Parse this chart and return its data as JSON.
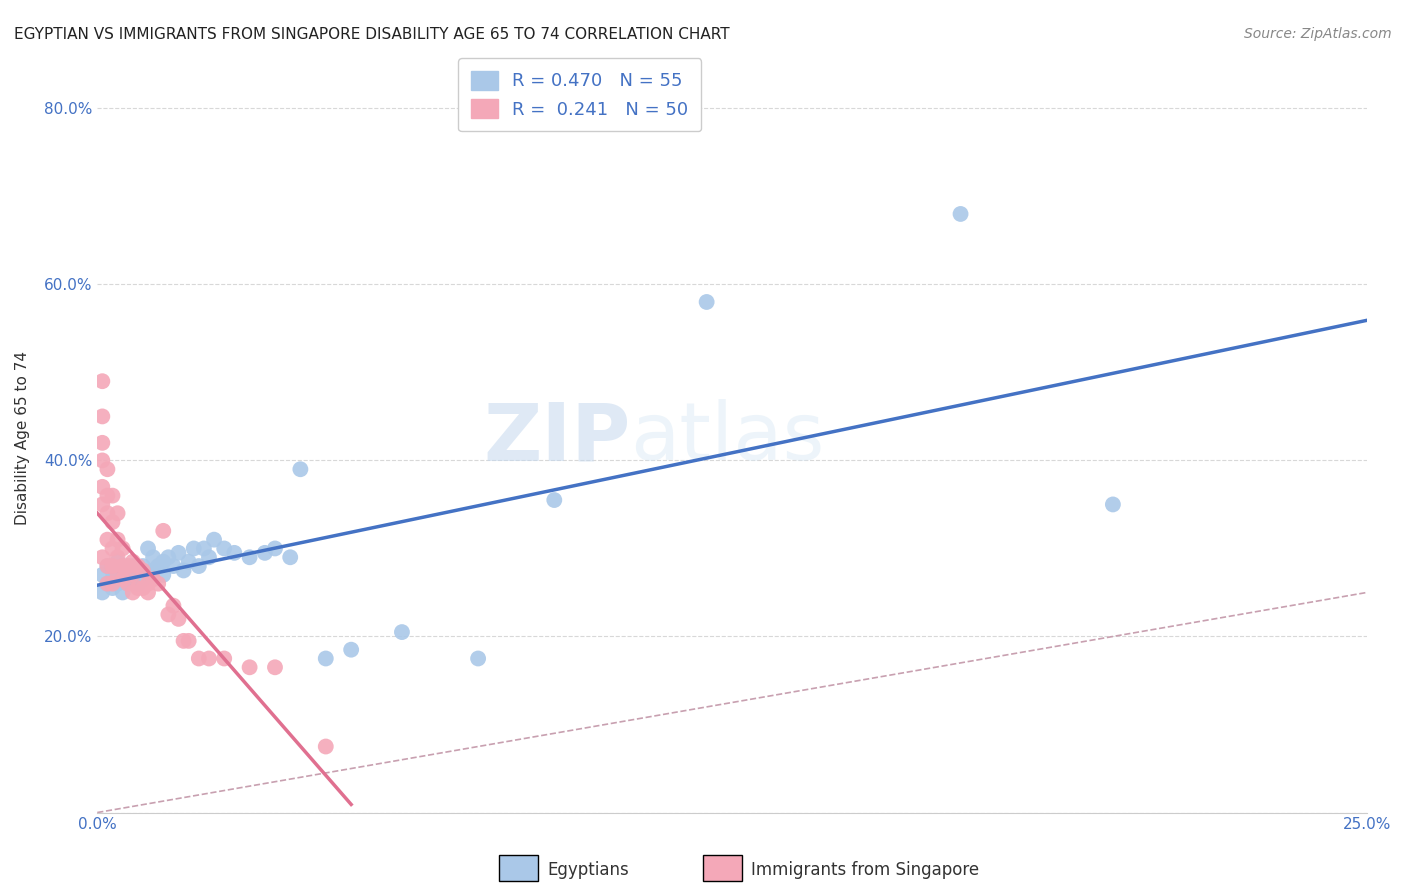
{
  "title": "EGYPTIAN VS IMMIGRANTS FROM SINGAPORE DISABILITY AGE 65 TO 74 CORRELATION CHART",
  "source": "Source: ZipAtlas.com",
  "ylabel": "Disability Age 65 to 74",
  "xlim": [
    0.0,
    0.25
  ],
  "ylim": [
    0.0,
    0.85
  ],
  "xticks": [
    0.0,
    0.05,
    0.1,
    0.15,
    0.2,
    0.25
  ],
  "xticklabels": [
    "0.0%",
    "",
    "",
    "",
    "",
    "25.0%"
  ],
  "yticks": [
    0.0,
    0.2,
    0.4,
    0.6,
    0.8
  ],
  "yticklabels": [
    "",
    "20.0%",
    "40.0%",
    "60.0%",
    "80.0%"
  ],
  "watermark_left": "ZIP",
  "watermark_right": "atlas",
  "legend_label_eg": "R = 0.470   N = 55",
  "legend_label_sg": "R =  0.241   N = 50",
  "egyptians_color": "#aac8e8",
  "singapore_color": "#f4a8b8",
  "egyptians_line_color": "#4472c4",
  "singapore_line_color": "#e07090",
  "diagonal_color": "#c8a0b0",
  "title_fontsize": 11,
  "axis_label_fontsize": 11,
  "tick_fontsize": 11,
  "legend_fontsize": 13,
  "source_fontsize": 10,
  "background_color": "#ffffff",
  "grid_color": "#d8d8d8",
  "egyptians_x": [
    0.001,
    0.001,
    0.002,
    0.002,
    0.003,
    0.003,
    0.003,
    0.004,
    0.004,
    0.004,
    0.005,
    0.005,
    0.005,
    0.006,
    0.006,
    0.006,
    0.007,
    0.007,
    0.007,
    0.008,
    0.008,
    0.009,
    0.009,
    0.01,
    0.01,
    0.011,
    0.011,
    0.012,
    0.013,
    0.013,
    0.014,
    0.015,
    0.016,
    0.017,
    0.018,
    0.019,
    0.02,
    0.021,
    0.022,
    0.023,
    0.025,
    0.027,
    0.03,
    0.033,
    0.035,
    0.038,
    0.04,
    0.045,
    0.05,
    0.06,
    0.075,
    0.09,
    0.12,
    0.17,
    0.2
  ],
  "egyptians_y": [
    0.27,
    0.25,
    0.28,
    0.26,
    0.265,
    0.275,
    0.255,
    0.27,
    0.26,
    0.285,
    0.275,
    0.265,
    0.25,
    0.28,
    0.27,
    0.26,
    0.275,
    0.265,
    0.28,
    0.275,
    0.26,
    0.28,
    0.265,
    0.3,
    0.27,
    0.29,
    0.275,
    0.28,
    0.285,
    0.27,
    0.29,
    0.28,
    0.295,
    0.275,
    0.285,
    0.3,
    0.28,
    0.3,
    0.29,
    0.31,
    0.3,
    0.295,
    0.29,
    0.295,
    0.3,
    0.29,
    0.39,
    0.175,
    0.185,
    0.205,
    0.175,
    0.355,
    0.58,
    0.68,
    0.35
  ],
  "singapore_x": [
    0.001,
    0.001,
    0.001,
    0.001,
    0.001,
    0.001,
    0.001,
    0.002,
    0.002,
    0.002,
    0.002,
    0.002,
    0.002,
    0.003,
    0.003,
    0.003,
    0.003,
    0.003,
    0.004,
    0.004,
    0.004,
    0.004,
    0.005,
    0.005,
    0.005,
    0.006,
    0.006,
    0.007,
    0.007,
    0.007,
    0.008,
    0.008,
    0.009,
    0.009,
    0.01,
    0.01,
    0.011,
    0.012,
    0.013,
    0.014,
    0.015,
    0.016,
    0.017,
    0.018,
    0.02,
    0.022,
    0.025,
    0.03,
    0.035,
    0.045
  ],
  "singapore_y": [
    0.49,
    0.45,
    0.42,
    0.4,
    0.37,
    0.35,
    0.29,
    0.39,
    0.36,
    0.34,
    0.31,
    0.28,
    0.26,
    0.36,
    0.33,
    0.3,
    0.28,
    0.26,
    0.34,
    0.31,
    0.29,
    0.27,
    0.3,
    0.28,
    0.265,
    0.28,
    0.26,
    0.285,
    0.27,
    0.25,
    0.28,
    0.255,
    0.275,
    0.255,
    0.26,
    0.25,
    0.265,
    0.26,
    0.32,
    0.225,
    0.235,
    0.22,
    0.195,
    0.195,
    0.175,
    0.175,
    0.175,
    0.165,
    0.165,
    0.075
  ]
}
